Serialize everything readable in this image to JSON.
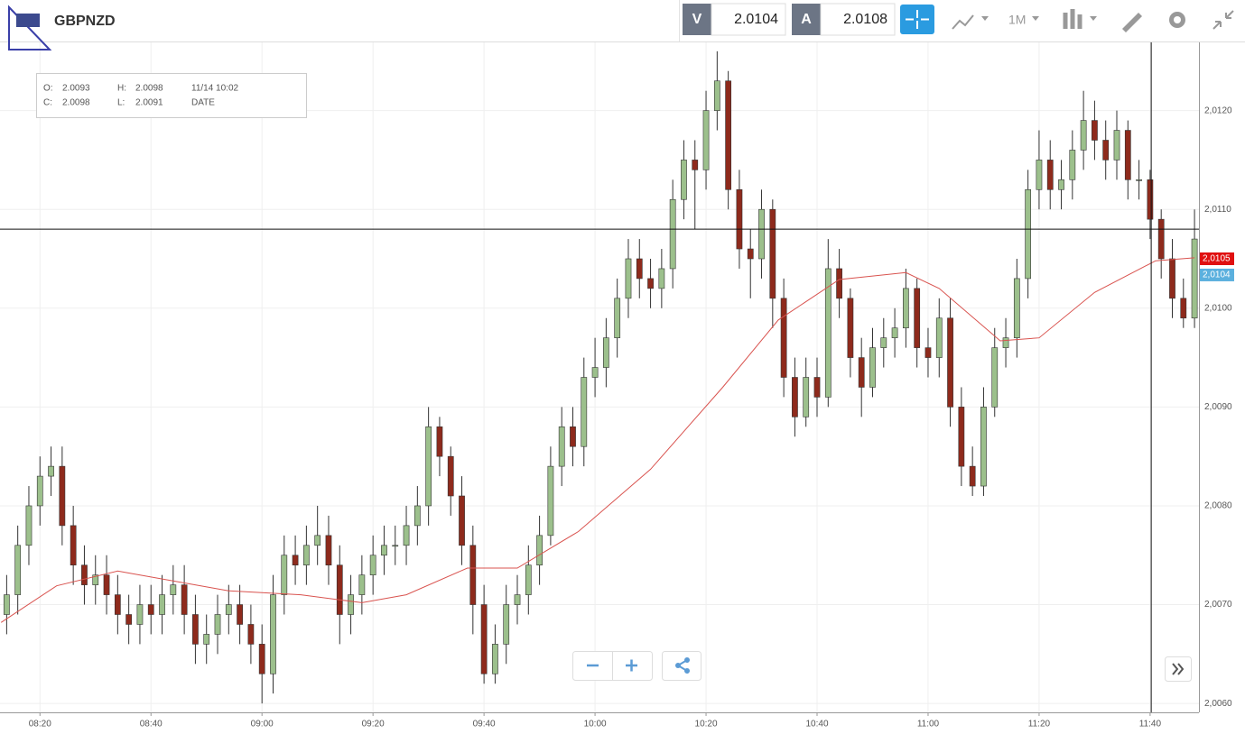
{
  "toolbar": {
    "symbol": "GBPNZD",
    "bid_label": "V",
    "bid": "2.0104",
    "ask_label": "A",
    "ask": "2.0108",
    "timeframe": "1M"
  },
  "info": {
    "items": [
      {
        "label": "O:",
        "value": "2.0093"
      },
      {
        "label": "H:",
        "value": "2.0098"
      },
      {
        "label": "C:",
        "value": "2.0098"
      },
      {
        "label": "L:",
        "value": "2.0091"
      }
    ],
    "time": "11/14 10:02",
    "date": "DATE"
  },
  "chart_data": {
    "type": "candlestick",
    "xlim": [
      492.8,
      708.8
    ],
    "ylim": [
      2.00591,
      2.01269
    ],
    "xticks": [
      {
        "value": 500,
        "label": "08:20"
      },
      {
        "value": 520,
        "label": "08:40"
      },
      {
        "value": 540,
        "label": "09:00"
      },
      {
        "value": 560,
        "label": "09:20"
      },
      {
        "value": 580,
        "label": "09:40"
      },
      {
        "value": 600,
        "label": "10:00"
      },
      {
        "value": 620,
        "label": "10:20"
      },
      {
        "value": 640,
        "label": "10:40"
      },
      {
        "value": 660,
        "label": "11:00"
      },
      {
        "value": 680,
        "label": "11:20"
      },
      {
        "value": 700,
        "label": "11:40"
      }
    ],
    "yticks": [
      {
        "value": 2.006,
        "label": "2,0060"
      },
      {
        "value": 2.007,
        "label": "2,0070"
      },
      {
        "value": 2.008,
        "label": "2,0080"
      },
      {
        "value": 2.009,
        "label": "2,0090"
      },
      {
        "value": 2.01,
        "label": "2,0100"
      },
      {
        "value": 2.011,
        "label": "2,0110"
      },
      {
        "value": 2.012,
        "label": "2,0120"
      }
    ],
    "grid": true,
    "up_color": "#9cc08c",
    "down_color": "#8e2a1c",
    "x": [
      494,
      496,
      498,
      500,
      502,
      504,
      506,
      508,
      510,
      512,
      514,
      516,
      518,
      520,
      522,
      524,
      526,
      528,
      530,
      532,
      534,
      536,
      538,
      540,
      542,
      544,
      546,
      548,
      550,
      552,
      554,
      556,
      558,
      560,
      562,
      564,
      566,
      568,
      570,
      572,
      574,
      576,
      578,
      580,
      582,
      584,
      586,
      588,
      590,
      592,
      594,
      596,
      598,
      600,
      602,
      604,
      606,
      608,
      610,
      612,
      614,
      616,
      618,
      620,
      622,
      624,
      626,
      628,
      630,
      632,
      634,
      636,
      638,
      640,
      642,
      644,
      646,
      648,
      650,
      652,
      654,
      656,
      658,
      660,
      662,
      664,
      666,
      668,
      670,
      672,
      674,
      676,
      678,
      680,
      682,
      684,
      686,
      688,
      690,
      692,
      694,
      696,
      698,
      700,
      702,
      704,
      706,
      708
    ],
    "ohlc": [
      [
        2.0069,
        2.0073,
        2.0067,
        2.0071
      ],
      [
        2.0071,
        2.0078,
        2.0069,
        2.0076
      ],
      [
        2.0076,
        2.0082,
        2.0074,
        2.008
      ],
      [
        2.008,
        2.0085,
        2.0078,
        2.0083
      ],
      [
        2.0083,
        2.0086,
        2.0081,
        2.0084
      ],
      [
        2.0084,
        2.0086,
        2.0076,
        2.0078
      ],
      [
        2.0078,
        2.008,
        2.0072,
        2.0074
      ],
      [
        2.0074,
        2.0076,
        2.007,
        2.0072
      ],
      [
        2.0072,
        2.0075,
        2.007,
        2.0073
      ],
      [
        2.0073,
        2.0075,
        2.0069,
        2.0071
      ],
      [
        2.0071,
        2.0073,
        2.0067,
        2.0069
      ],
      [
        2.0069,
        2.0071,
        2.0066,
        2.0068
      ],
      [
        2.0068,
        2.0072,
        2.0066,
        2.007
      ],
      [
        2.007,
        2.0072,
        2.0067,
        2.0069
      ],
      [
        2.0069,
        2.0073,
        2.0067,
        2.0071
      ],
      [
        2.0071,
        2.0074,
        2.0069,
        2.0072
      ],
      [
        2.0072,
        2.0074,
        2.0067,
        2.0069
      ],
      [
        2.0069,
        2.0071,
        2.0064,
        2.0066
      ],
      [
        2.0066,
        2.0069,
        2.0064,
        2.0067
      ],
      [
        2.0067,
        2.0071,
        2.0065,
        2.0069
      ],
      [
        2.0069,
        2.0072,
        2.0067,
        2.007
      ],
      [
        2.007,
        2.0072,
        2.0066,
        2.0068
      ],
      [
        2.0068,
        2.007,
        2.0064,
        2.0066
      ],
      [
        2.0066,
        2.0068,
        2.006,
        2.0063
      ],
      [
        2.0063,
        2.0073,
        2.0061,
        2.0071
      ],
      [
        2.0071,
        2.0077,
        2.0069,
        2.0075
      ],
      [
        2.0075,
        2.0077,
        2.0072,
        2.0074
      ],
      [
        2.0074,
        2.0078,
        2.0072,
        2.0076
      ],
      [
        2.0076,
        2.008,
        2.0074,
        2.0077
      ],
      [
        2.0077,
        2.0079,
        2.0072,
        2.0074
      ],
      [
        2.0074,
        2.0076,
        2.0066,
        2.0069
      ],
      [
        2.0069,
        2.0073,
        2.0067,
        2.0071
      ],
      [
        2.0071,
        2.0075,
        2.0069,
        2.0073
      ],
      [
        2.0073,
        2.0077,
        2.0071,
        2.0075
      ],
      [
        2.0075,
        2.0078,
        2.0073,
        2.0076
      ],
      [
        2.0076,
        2.0078,
        2.0074,
        2.0076
      ],
      [
        2.0076,
        2.008,
        2.0074,
        2.0078
      ],
      [
        2.0078,
        2.0082,
        2.0076,
        2.008
      ],
      [
        2.008,
        2.009,
        2.0078,
        2.0088
      ],
      [
        2.0088,
        2.0089,
        2.0083,
        2.0085
      ],
      [
        2.0085,
        2.0086,
        2.0079,
        2.0081
      ],
      [
        2.0081,
        2.0083,
        2.0074,
        2.0076
      ],
      [
        2.0076,
        2.0078,
        2.0067,
        2.007
      ],
      [
        2.007,
        2.0072,
        2.0062,
        2.0063
      ],
      [
        2.0063,
        2.0068,
        2.0062,
        2.0066
      ],
      [
        2.0066,
        2.0072,
        2.0064,
        2.007
      ],
      [
        2.007,
        2.0073,
        2.0068,
        2.0071
      ],
      [
        2.0071,
        2.0076,
        2.0069,
        2.0074
      ],
      [
        2.0074,
        2.0079,
        2.0072,
        2.0077
      ],
      [
        2.0077,
        2.0086,
        2.0076,
        2.0084
      ],
      [
        2.0084,
        2.009,
        2.0082,
        2.0088
      ],
      [
        2.0088,
        2.009,
        2.0084,
        2.0086
      ],
      [
        2.0086,
        2.0095,
        2.0084,
        2.0093
      ],
      [
        2.0093,
        2.0097,
        2.0091,
        2.0094
      ],
      [
        2.0094,
        2.0099,
        2.0092,
        2.0097
      ],
      [
        2.0097,
        2.0103,
        2.0095,
        2.0101
      ],
      [
        2.0101,
        2.0107,
        2.0099,
        2.0105
      ],
      [
        2.0105,
        2.0107,
        2.0101,
        2.0103
      ],
      [
        2.0103,
        2.0105,
        2.01,
        2.0102
      ],
      [
        2.0102,
        2.0106,
        2.01,
        2.0104
      ],
      [
        2.0104,
        2.0113,
        2.0102,
        2.0111
      ],
      [
        2.0111,
        2.0117,
        2.0109,
        2.0115
      ],
      [
        2.0115,
        2.0117,
        2.0108,
        2.0114
      ],
      [
        2.0114,
        2.0122,
        2.0112,
        2.012
      ],
      [
        2.012,
        2.0126,
        2.0118,
        2.0123
      ],
      [
        2.0123,
        2.0124,
        2.011,
        2.0112
      ],
      [
        2.0112,
        2.0114,
        2.0104,
        2.0106
      ],
      [
        2.0106,
        2.0108,
        2.0101,
        2.0105
      ],
      [
        2.0105,
        2.0112,
        2.0103,
        2.011
      ],
      [
        2.011,
        2.0111,
        2.0098,
        2.0101
      ],
      [
        2.0101,
        2.0103,
        2.0091,
        2.0093
      ],
      [
        2.0093,
        2.0095,
        2.0087,
        2.0089
      ],
      [
        2.0089,
        2.0095,
        2.0088,
        2.0093
      ],
      [
        2.0093,
        2.0095,
        2.0089,
        2.0091
      ],
      [
        2.0091,
        2.0107,
        2.009,
        2.0104
      ],
      [
        2.0104,
        2.0106,
        2.0099,
        2.0101
      ],
      [
        2.0101,
        2.0102,
        2.0093,
        2.0095
      ],
      [
        2.0095,
        2.0097,
        2.0089,
        2.0092
      ],
      [
        2.0092,
        2.0098,
        2.0091,
        2.0096
      ],
      [
        2.0096,
        2.0099,
        2.0094,
        2.0097
      ],
      [
        2.0097,
        2.01,
        2.0095,
        2.0098
      ],
      [
        2.0098,
        2.0104,
        2.0096,
        2.0102
      ],
      [
        2.0102,
        2.0103,
        2.0094,
        2.0096
      ],
      [
        2.0096,
        2.0098,
        2.0093,
        2.0095
      ],
      [
        2.0095,
        2.0101,
        2.0093,
        2.0099
      ],
      [
        2.0099,
        2.0101,
        2.0088,
        2.009
      ],
      [
        2.009,
        2.0092,
        2.0082,
        2.0084
      ],
      [
        2.0084,
        2.0086,
        2.0081,
        2.0082
      ],
      [
        2.0082,
        2.0092,
        2.0081,
        2.009
      ],
      [
        2.009,
        2.0098,
        2.0089,
        2.0096
      ],
      [
        2.0096,
        2.0099,
        2.0094,
        2.0097
      ],
      [
        2.0097,
        2.0105,
        2.0095,
        2.0103
      ],
      [
        2.0103,
        2.0114,
        2.0101,
        2.0112
      ],
      [
        2.0112,
        2.0118,
        2.011,
        2.0115
      ],
      [
        2.0115,
        2.0117,
        2.011,
        2.0112
      ],
      [
        2.0112,
        2.0115,
        2.011,
        2.0113
      ],
      [
        2.0113,
        2.0118,
        2.0111,
        2.0116
      ],
      [
        2.0116,
        2.0122,
        2.0114,
        2.0119
      ],
      [
        2.0119,
        2.0121,
        2.0115,
        2.0117
      ],
      [
        2.0117,
        2.0119,
        2.0113,
        2.0115
      ],
      [
        2.0115,
        2.012,
        2.0113,
        2.0118
      ],
      [
        2.0118,
        2.0119,
        2.0111,
        2.0113
      ],
      [
        2.0113,
        2.0115,
        2.0111,
        2.0113
      ],
      [
        2.0113,
        2.0114,
        2.0107,
        2.0109
      ],
      [
        2.0109,
        2.011,
        2.0103,
        2.0105
      ],
      [
        2.0105,
        2.0107,
        2.0099,
        2.0101
      ],
      [
        2.0101,
        2.0103,
        2.0098,
        2.0099
      ],
      [
        2.0099,
        2.011,
        2.0098,
        2.0107
      ]
    ],
    "moving_average": {
      "color": "#d9534f",
      "x": [
        493,
        503,
        514,
        534,
        547,
        558,
        566,
        577,
        586,
        597,
        610,
        623,
        633,
        644,
        656,
        662,
        673,
        680,
        690,
        701,
        708
      ],
      "values": [
        2.00682,
        2.00719,
        2.00734,
        2.00714,
        2.0071,
        2.00702,
        2.0071,
        2.00737,
        2.00737,
        2.00774,
        2.00837,
        2.0092,
        2.00988,
        2.01029,
        2.01036,
        2.0102,
        2.00967,
        2.0097,
        2.01016,
        2.01048,
        2.01051
      ]
    },
    "crosshair": {
      "x": 700.2,
      "y": 2.0108
    },
    "price_tags": [
      {
        "value": 2.0105,
        "label": "2,0105",
        "color": "#e01010"
      },
      {
        "value": 2.0104,
        "label": "2,0104",
        "color": "#5bb0de"
      }
    ]
  }
}
